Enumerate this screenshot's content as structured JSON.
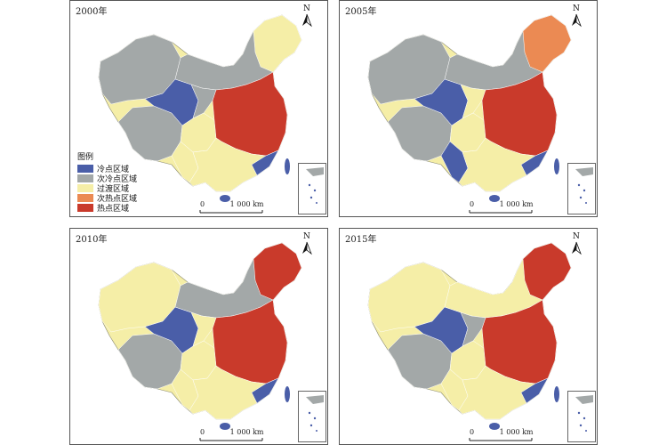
{
  "colors": {
    "cold": "#4a5ea8",
    "sub_cold": "#a3a8a8",
    "transition": "#f5eea7",
    "sub_hot": "#eb8a53",
    "hot": "#c93a2b",
    "water": "#ffffff"
  },
  "legend": {
    "title": "图例",
    "items": [
      {
        "label": "冷点区域",
        "key": "cold"
      },
      {
        "label": "次冷点区域",
        "key": "sub_cold"
      },
      {
        "label": "过渡区域",
        "key": "transition"
      },
      {
        "label": "次热点区域",
        "key": "sub_hot"
      },
      {
        "label": "热点区域",
        "key": "hot"
      }
    ]
  },
  "panels": [
    {
      "year": "2000年",
      "north": "N",
      "scale": {
        "zero": "0",
        "dist": "1 000 km"
      }
    },
    {
      "year": "2005年",
      "north": "N",
      "scale": {
        "zero": "0",
        "dist": "1 000 km"
      }
    },
    {
      "year": "2010年",
      "north": "N",
      "scale": {
        "zero": "0",
        "dist": "1 000 km"
      }
    },
    {
      "year": "2015年",
      "north": "N",
      "scale": {
        "zero": "0",
        "dist": "1 000 km"
      }
    }
  ]
}
